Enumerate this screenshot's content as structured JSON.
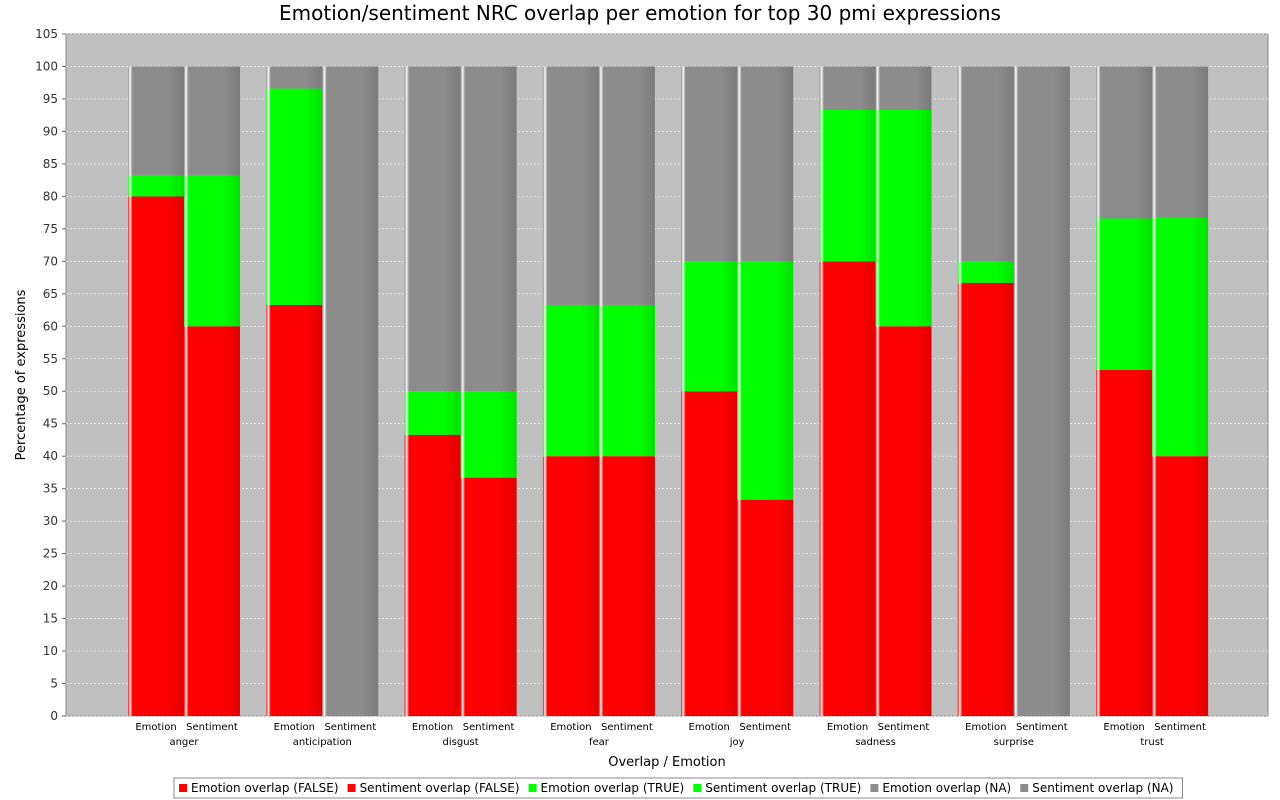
{
  "chart_data": {
    "type": "bar",
    "stacked": true,
    "title": "Emotion/sentiment NRC overlap per emotion for top 30 pmi expressions",
    "xlabel": "Overlap / Emotion",
    "ylabel": "Percentage of expressions",
    "ylim": [
      0,
      105
    ],
    "ytick_step": 5,
    "grid": true,
    "legend_position": "bottom",
    "categories": [
      "anger",
      "anticipation",
      "disgust",
      "fear",
      "joy",
      "sadness",
      "surprise",
      "trust"
    ],
    "subcategories": [
      "Emotion",
      "Sentiment"
    ],
    "series": [
      {
        "name": "Emotion overlap (FALSE)",
        "group": "Emotion",
        "color": "#ff0000",
        "values": [
          80,
          63.3,
          43.3,
          40,
          50,
          70,
          66.7,
          53.3
        ]
      },
      {
        "name": "Sentiment overlap (FALSE)",
        "group": "Sentiment",
        "color": "#ff0000",
        "values": [
          60,
          0,
          36.7,
          40,
          33.3,
          60,
          0,
          40
        ]
      },
      {
        "name": "Emotion overlap (TRUE)",
        "group": "Emotion",
        "color": "#00ff00",
        "values": [
          3.3,
          33.3,
          6.7,
          23.3,
          20,
          23.3,
          3.3,
          23.3
        ]
      },
      {
        "name": "Sentiment overlap (TRUE)",
        "group": "Sentiment",
        "color": "#00ff00",
        "values": [
          23.3,
          0,
          13.3,
          23.3,
          36.7,
          33.3,
          0,
          36.7
        ]
      },
      {
        "name": "Emotion overlap (NA)",
        "group": "Emotion",
        "color": "#8c8c8c",
        "values": [
          16.7,
          3.4,
          50,
          36.7,
          30,
          6.7,
          30,
          23.4
        ]
      },
      {
        "name": "Sentiment overlap (NA)",
        "group": "Sentiment",
        "color": "#8c8c8c",
        "values": [
          16.7,
          100,
          50,
          36.7,
          30,
          6.7,
          100,
          23.3
        ]
      }
    ]
  }
}
